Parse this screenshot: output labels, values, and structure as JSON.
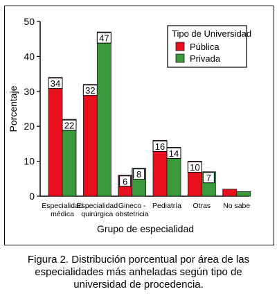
{
  "chart_data": {
    "type": "bar",
    "ylabel": "Porcentaje",
    "xlabel": "Grupo de especialidad",
    "ylim": [
      0,
      50
    ],
    "yticks": [
      0,
      10,
      20,
      30,
      40,
      50
    ],
    "categories": [
      [
        "Especialidad",
        "médica"
      ],
      [
        "Especialidad",
        "quirúrgica"
      ],
      [
        "Gineco -",
        "obstetricia"
      ],
      [
        "Pediatría"
      ],
      [
        "Otras"
      ],
      [
        "No sabe"
      ]
    ],
    "legend_title": "Tipo de Universidad",
    "legend_position": "top-right",
    "series": [
      {
        "name": "Pública",
        "values": [
          34,
          32,
          6,
          16,
          10,
          2
        ],
        "labels": [
          "34",
          "32",
          "6",
          "16",
          "10",
          ""
        ]
      },
      {
        "name": "Privada",
        "values": [
          22,
          47,
          8,
          14,
          7,
          1.3
        ],
        "labels": [
          "22",
          "47",
          "8",
          "14",
          "7",
          ""
        ]
      }
    ]
  },
  "colors": {
    "publica": "#e8101e",
    "privada": "#3a9a3c"
  },
  "caption": "Figura 2. Distribución porcentual por área de las\nespecialidades más anheladas según tipo de\nuniversidad de procedencia."
}
